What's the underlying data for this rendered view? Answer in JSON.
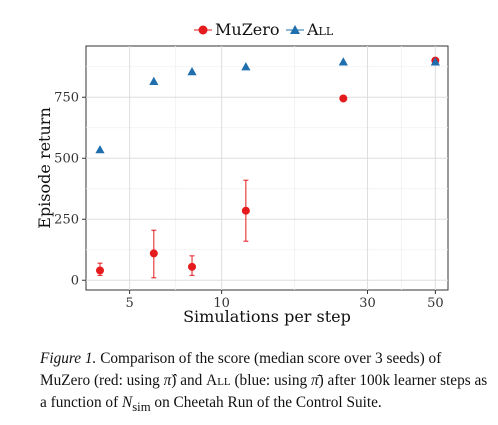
{
  "chart_data": {
    "type": "scatter",
    "title": "",
    "xlabel": "Simulations per step",
    "ylabel": "Episode return",
    "x_scale": "log",
    "xlim": [
      3.6,
      55
    ],
    "ylim": [
      -40,
      960
    ],
    "xticks": [
      5,
      10,
      30,
      50
    ],
    "xtick_labels": [
      "5",
      "10",
      "30",
      "50"
    ],
    "yticks": [
      0,
      250,
      500,
      750
    ],
    "ytick_labels": [
      "0",
      "250",
      "500",
      "750"
    ],
    "grid": true,
    "legend_position": "top",
    "series": [
      {
        "name": "MuZero",
        "color": "#e41a1c",
        "marker": "circle",
        "x": [
          4,
          6,
          8,
          12,
          25,
          50
        ],
        "y": [
          40,
          110,
          55,
          285,
          745,
          900
        ],
        "err_low": [
          20,
          10,
          20,
          160,
          745,
          900
        ],
        "err_high": [
          70,
          205,
          100,
          410,
          745,
          900
        ]
      },
      {
        "name": "All",
        "color": "#1f6fae",
        "marker": "triangle",
        "x": [
          4,
          6,
          8,
          12,
          25,
          50
        ],
        "y": [
          535,
          815,
          855,
          875,
          895,
          895
        ]
      }
    ]
  },
  "legend": {
    "muzero_label": "MuZero",
    "all_label": "All"
  },
  "caption": {
    "figure_label": "Figure 1.",
    "part1": " Comparison of the score (median score over 3 seeds) of MuZero (red: using ",
    "pi_hat": "π̂",
    "part2": ") and ",
    "all_name": "All",
    "part3": " (blue: using ",
    "pi_bar": "π̄",
    "part4": ") after 100k learner steps as a function of ",
    "n_sym": "N",
    "n_sub": "sim",
    "part5": " on Cheetah Run of the Control Suite."
  }
}
